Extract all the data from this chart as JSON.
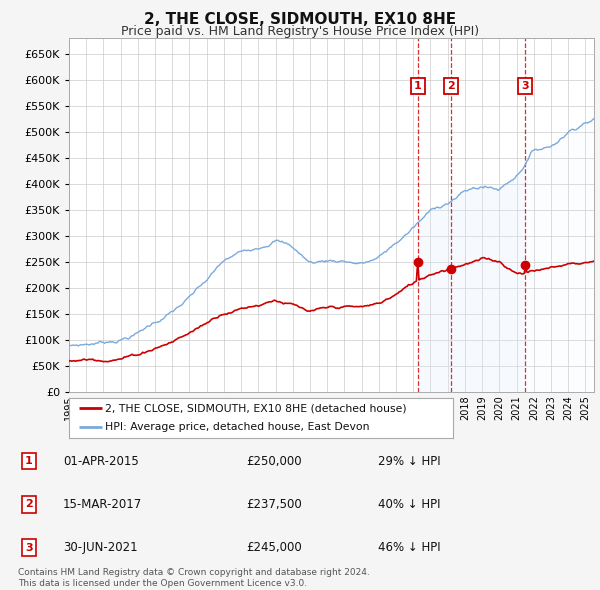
{
  "title": "2, THE CLOSE, SIDMOUTH, EX10 8HE",
  "subtitle": "Price paid vs. HM Land Registry's House Price Index (HPI)",
  "ylim": [
    0,
    680000
  ],
  "yticks": [
    0,
    50000,
    100000,
    150000,
    200000,
    250000,
    300000,
    350000,
    400000,
    450000,
    500000,
    550000,
    600000,
    650000
  ],
  "xlim_start": 1995.0,
  "xlim_end": 2025.5,
  "sale_color": "#cc0000",
  "hpi_color": "#7aaadd",
  "hpi_fill_color": "#ddeeff",
  "sale_label": "2, THE CLOSE, SIDMOUTH, EX10 8HE (detached house)",
  "hpi_label": "HPI: Average price, detached house, East Devon",
  "transactions": [
    {
      "num": 1,
      "date": "01-APR-2015",
      "date_x": 2015.25,
      "price": 250000,
      "pct": "29%",
      "dir": "↓"
    },
    {
      "num": 2,
      "date": "15-MAR-2017",
      "date_x": 2017.2,
      "price": 237500,
      "pct": "40%",
      "dir": "↓"
    },
    {
      "num": 3,
      "date": "30-JUN-2021",
      "date_x": 2021.5,
      "price": 245000,
      "pct": "46%",
      "dir": "↓"
    }
  ],
  "footnote": "Contains HM Land Registry data © Crown copyright and database right 2024.\nThis data is licensed under the Open Government Licence v3.0.",
  "grid_color": "#cccccc",
  "bg_color": "#f5f5f5",
  "plot_bg": "#ffffff",
  "hpi_anchors_x": [
    1995,
    1996,
    1997,
    1998,
    1999,
    2000,
    2001,
    2002,
    2003,
    2004,
    2005,
    2006,
    2007,
    2008,
    2009,
    2010,
    2011,
    2012,
    2013,
    2014,
    2015,
    2016,
    2017,
    2018,
    2019,
    2020,
    2021,
    2022,
    2023,
    2024,
    2025,
    2025.5
  ],
  "hpi_anchors_y": [
    88000,
    92000,
    97000,
    105000,
    118000,
    140000,
    160000,
    185000,
    215000,
    250000,
    265000,
    280000,
    300000,
    285000,
    255000,
    260000,
    262000,
    258000,
    268000,
    295000,
    325000,
    355000,
    375000,
    395000,
    405000,
    400000,
    430000,
    480000,
    490000,
    520000,
    545000,
    550000
  ],
  "sale_anchors_x": [
    1995,
    1996,
    1997,
    1998,
    1999,
    2000,
    2001,
    2002,
    2003,
    2004,
    2005,
    2006,
    2007,
    2008,
    2009,
    2010,
    2011,
    2012,
    2013,
    2014,
    2015,
    2016,
    2017,
    2018,
    2019,
    2020,
    2021,
    2022,
    2023,
    2024,
    2025,
    2025.5
  ],
  "sale_anchors_y": [
    60000,
    63000,
    67000,
    72000,
    80000,
    95000,
    108000,
    125000,
    145000,
    168000,
    178000,
    187000,
    200000,
    190000,
    172000,
    175000,
    177000,
    174000,
    180000,
    198000,
    218000,
    238000,
    252000,
    265000,
    272000,
    268000,
    248000,
    255000,
    260000,
    268000,
    272000,
    275000
  ]
}
